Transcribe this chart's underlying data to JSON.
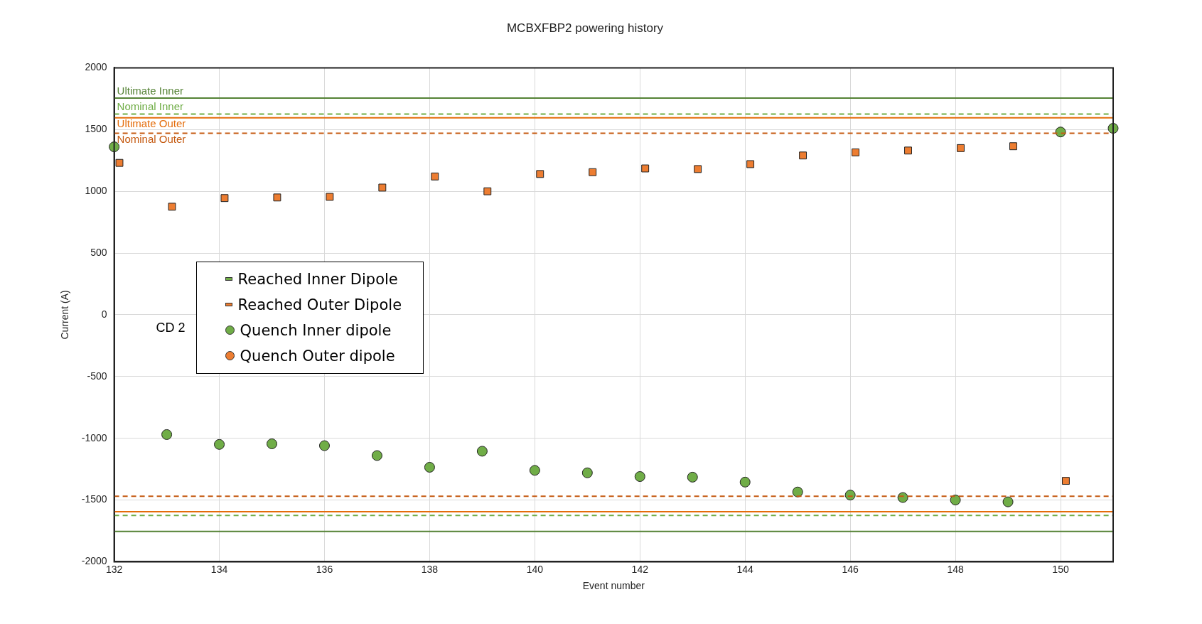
{
  "chart_data": {
    "type": "scatter",
    "title": "MCBXFBP2 powering history",
    "xlabel": "Event number",
    "ylabel": "Current (A)",
    "xlim": [
      132,
      151
    ],
    "xticks": [
      132,
      134,
      136,
      138,
      140,
      142,
      144,
      146,
      148,
      150
    ],
    "ylim": [
      -2000,
      2000
    ],
    "yticks": [
      -2000,
      -1500,
      -1000,
      -500,
      0,
      500,
      1000,
      1500,
      2000
    ],
    "grid": true,
    "legend": "left",
    "series": [
      {
        "name": "Reached Inner Dipole",
        "color": "#70ad47",
        "marker": "square"
      },
      {
        "name": "Reached Outer Dipole",
        "color": "#ed7d31",
        "marker": "square",
        "x": [
          132.1,
          133.1,
          134.1,
          135.1,
          136.1,
          137.1,
          138.1,
          139.1,
          140.1,
          141.1,
          142.1,
          143.1,
          144.1,
          145.1,
          146.1,
          147.1,
          148.1,
          149.1,
          150.1,
          null
        ],
        "values": [
          1230,
          875,
          945,
          950,
          955,
          1030,
          1120,
          1000,
          1140,
          1155,
          1185,
          1180,
          1220,
          1290,
          1315,
          1330,
          1350,
          1365,
          -1345,
          null
        ]
      },
      {
        "name": "Quench Inner dipole",
        "color": "#70ad47",
        "marker": "circle",
        "x": [
          132,
          133,
          134,
          135,
          136,
          137,
          138,
          139,
          140,
          141,
          142,
          143,
          144,
          145,
          146,
          147,
          148,
          149,
          150,
          151
        ],
        "values": [
          1360,
          -970,
          -1050,
          -1045,
          -1060,
          -1140,
          -1235,
          -1105,
          -1260,
          -1280,
          -1310,
          -1315,
          -1355,
          -1435,
          -1460,
          -1480,
          -1500,
          -1515,
          1480,
          1510
        ]
      },
      {
        "name": "Quench Outer dipole",
        "color": "#ed7d31",
        "marker": "circle"
      }
    ],
    "ref_lines": [
      {
        "axis": "y",
        "value": 1755,
        "label": "Ultimate Inner",
        "color": "#548235",
        "line_style": "solid"
      },
      {
        "axis": "y",
        "value": 1625,
        "label": "Nominal Inner",
        "color": "#70ad47",
        "line_style": "dashed"
      },
      {
        "axis": "y",
        "value": 1595,
        "label": "Ultimate Outer",
        "color": "#e46c0a",
        "line_style": "solid"
      },
      {
        "axis": "y",
        "value": 1470,
        "label": "Nominal Outer",
        "color": "#c55a11",
        "line_style": "dashed"
      },
      {
        "axis": "y",
        "value": -1755,
        "color": "#548235",
        "line_style": "solid"
      },
      {
        "axis": "y",
        "value": -1625,
        "color": "#70ad47",
        "line_style": "dashed"
      },
      {
        "axis": "y",
        "value": -1595,
        "color": "#e46c0a",
        "line_style": "solid"
      },
      {
        "axis": "y",
        "value": -1470,
        "color": "#c55a11",
        "line_style": "dashed"
      }
    ],
    "annotations": [
      "CD 2"
    ]
  }
}
